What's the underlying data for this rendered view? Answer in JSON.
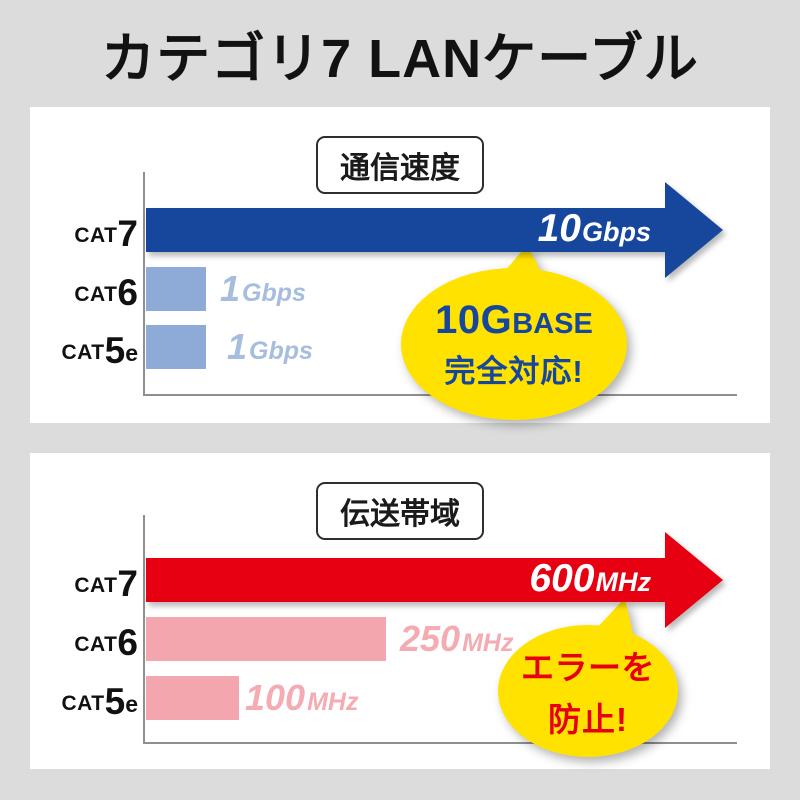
{
  "title": "カテゴリ7 LANケーブル",
  "colors": {
    "background": "#dcdcdc",
    "panel": "#ffffff",
    "axis": "#8f8f8f",
    "speed_arrow": "#17479d",
    "speed_bar": "#8dabd6",
    "speed_value_text": "#a6bde0",
    "bandwidth_arrow": "#e60012",
    "bandwidth_bar": "#f3a6ae",
    "bandwidth_value_text": "#f4abb2",
    "bubble": "#ffe200",
    "arrow_value_text": "#ffffff"
  },
  "charts": [
    {
      "box_title": "通信速度",
      "rows": [
        {
          "cat": "CAT",
          "num": "7",
          "sub": "",
          "value": "10",
          "unit": "Gbps"
        },
        {
          "cat": "CAT",
          "num": "6",
          "sub": "",
          "value": "1",
          "unit": "Gbps"
        },
        {
          "cat": "CAT",
          "num": "5",
          "sub": "e",
          "value": "1",
          "unit": "Gbps"
        }
      ],
      "bubble": {
        "big": "10G",
        "small": "BASE",
        "line2": "完全対応!"
      }
    },
    {
      "box_title": "伝送帯域",
      "rows": [
        {
          "cat": "CAT",
          "num": "7",
          "sub": "",
          "value": "600",
          "unit": "MHz"
        },
        {
          "cat": "CAT",
          "num": "6",
          "sub": "",
          "value": "250",
          "unit": "MHz"
        },
        {
          "cat": "CAT",
          "num": "5",
          "sub": "e",
          "value": "100",
          "unit": "MHz"
        }
      ],
      "bubble": {
        "big": "エラーを",
        "small": "",
        "line2": "防止!"
      }
    }
  ],
  "chart_data": [
    {
      "type": "bar",
      "title": "通信速度",
      "categories": [
        "CAT7",
        "CAT6",
        "CAT5e"
      ],
      "values": [
        10,
        1,
        1
      ],
      "unit": "Gbps",
      "value_labels": [
        "10Gbps",
        "1Gbps",
        "1Gbps"
      ],
      "xlabel": "",
      "ylabel": "",
      "xlim": [
        0,
        10.3
      ],
      "grid": false,
      "orientation": "horizontal",
      "annotation": "10GBASE 完全対応!",
      "highlight_series": "CAT7 drawn as navy arrow, others light blue bars"
    },
    {
      "type": "bar",
      "title": "伝送帯域",
      "categories": [
        "CAT7",
        "CAT6",
        "CAT5e"
      ],
      "values": [
        600,
        250,
        100
      ],
      "unit": "MHz",
      "value_labels": [
        "600MHz",
        "250MHz",
        "100MHz"
      ],
      "xlabel": "",
      "ylabel": "",
      "xlim": [
        0,
        620
      ],
      "grid": false,
      "orientation": "horizontal",
      "annotation": "エラーを 防止!",
      "highlight_series": "CAT7 drawn as red arrow, others pink bars"
    }
  ]
}
